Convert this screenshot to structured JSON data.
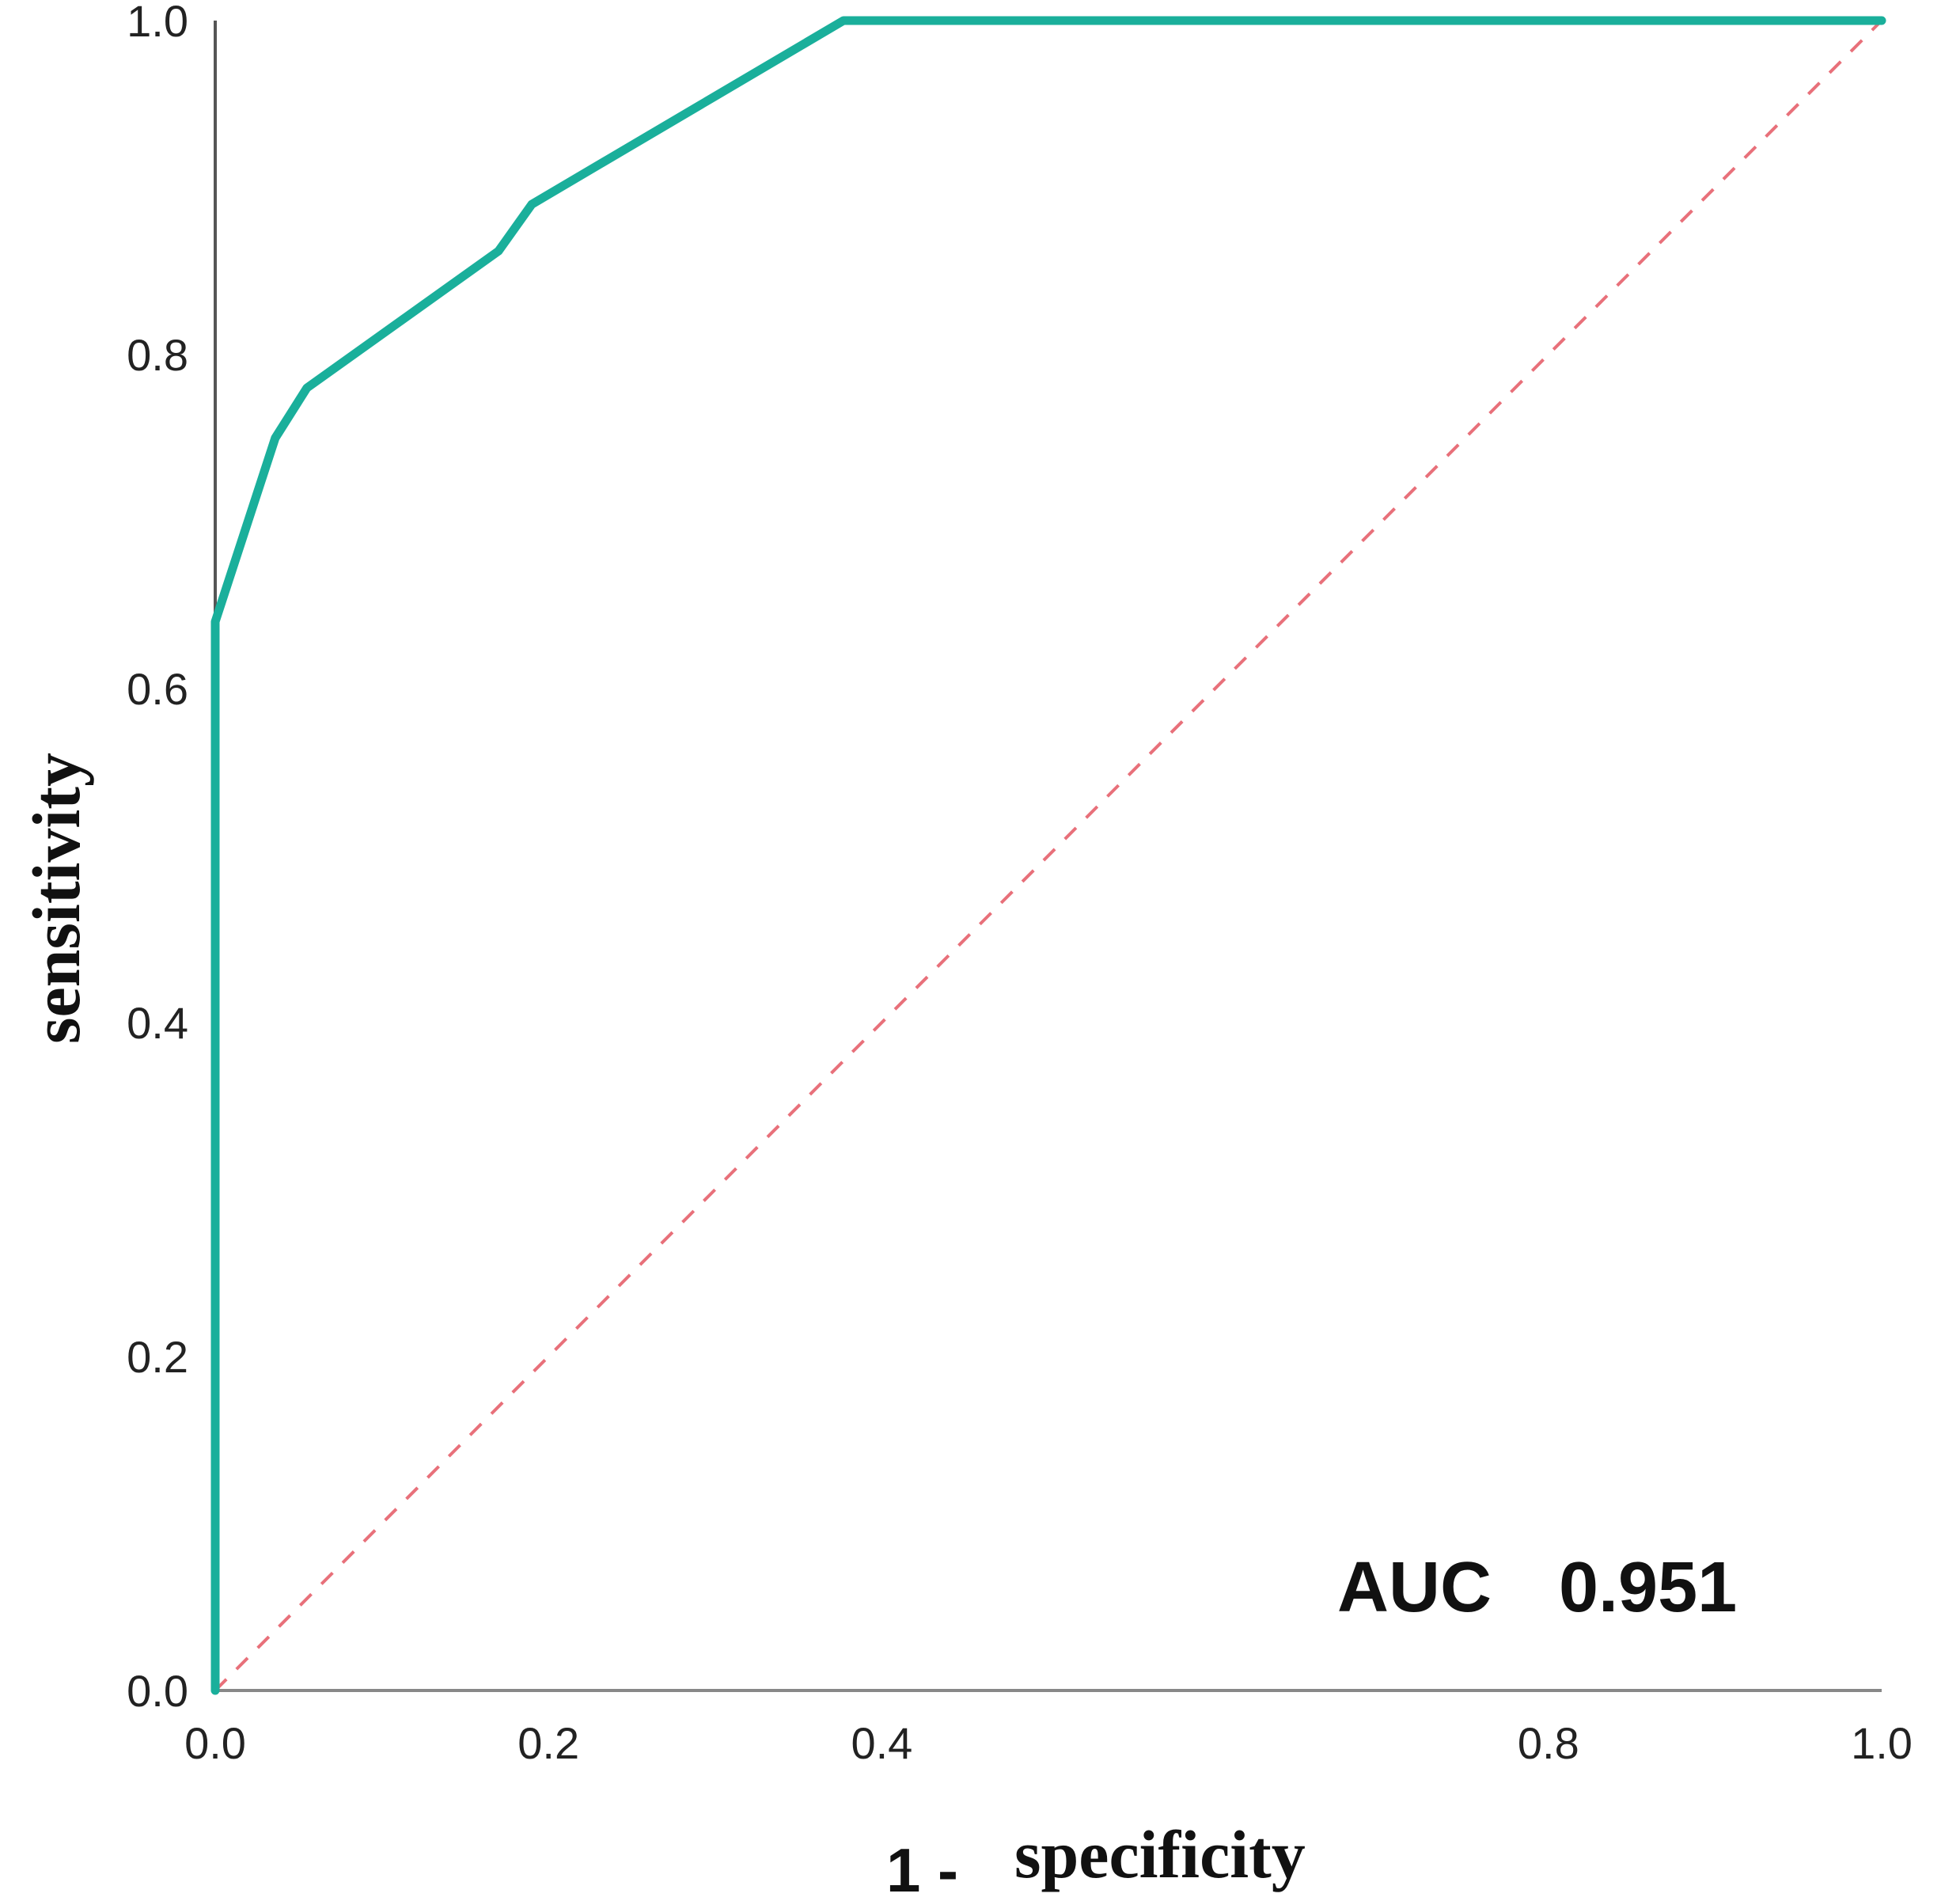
{
  "chart_data": {
    "type": "line",
    "xlabel_prefix": "1 -",
    "xlabel": "specificity",
    "ylabel": "sensitivity",
    "xlim": [
      0,
      1
    ],
    "ylim": [
      0,
      1
    ],
    "x_ticks": [
      "0.0",
      "0.2",
      "0.4",
      "0.8",
      "1.0"
    ],
    "x_tick_values": [
      0.0,
      0.2,
      0.4,
      0.8,
      1.0
    ],
    "y_ticks": [
      "0.0",
      "0.2",
      "0.4",
      "0.6",
      "0.8",
      "1.0"
    ],
    "y_tick_values": [
      0.0,
      0.2,
      0.4,
      0.6,
      0.8,
      1.0
    ],
    "series": [
      {
        "color": "#1aaf9b",
        "x": [
          0.0,
          0.0,
          0.036,
          0.055,
          0.17,
          0.19,
          0.377,
          1.0
        ],
        "y": [
          0.0,
          0.64,
          0.75,
          0.78,
          0.862,
          0.89,
          1.0,
          1.0
        ]
      }
    ],
    "reference_line": {
      "x": [
        0.0,
        1.0
      ],
      "y": [
        0.0,
        1.0
      ],
      "color": "#e8707a",
      "style": "dashed"
    },
    "annotation": {
      "label": "AUC",
      "value": "0.951"
    }
  }
}
